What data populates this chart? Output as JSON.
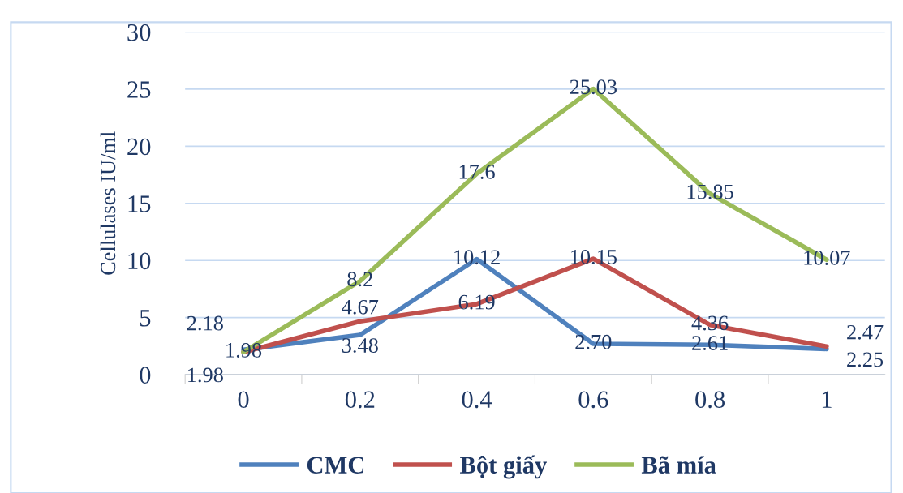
{
  "chart_data": {
    "type": "line",
    "ylabel": "Cellulases IU/ml",
    "categories": [
      "0",
      "0.2",
      "0.4",
      "0.6",
      "0.8",
      "1"
    ],
    "series": [
      {
        "name": "CMC",
        "color": "#4f81bd",
        "values": [
          2.18,
          3.48,
          10.12,
          2.7,
          2.61,
          2.25
        ],
        "value_labels": [
          "2.18",
          "3.48",
          "10.12",
          "2.70",
          "2.61",
          "2.25"
        ]
      },
      {
        "name": "Bột giấy",
        "color": "#c0504d",
        "values": [
          1.98,
          4.67,
          6.19,
          10.15,
          4.36,
          2.47
        ],
        "value_labels": [
          "1.98",
          "4.67",
          "6.19",
          "10.15",
          "4.36",
          "2.47"
        ]
      },
      {
        "name": "Bã mía",
        "color": "#9bbb59",
        "values": [
          1.98,
          8.2,
          17.6,
          25.03,
          15.85,
          10.07
        ],
        "value_labels": [
          "1.98",
          "8.2",
          "17.6",
          "25.03",
          "15.85",
          "10.07"
        ]
      }
    ],
    "ylim": [
      0,
      30
    ],
    "yticks": [
      0,
      5,
      10,
      15,
      20,
      25,
      30
    ],
    "grid": "y",
    "legend": "bottom",
    "marker": "none",
    "line_style": "solid"
  }
}
